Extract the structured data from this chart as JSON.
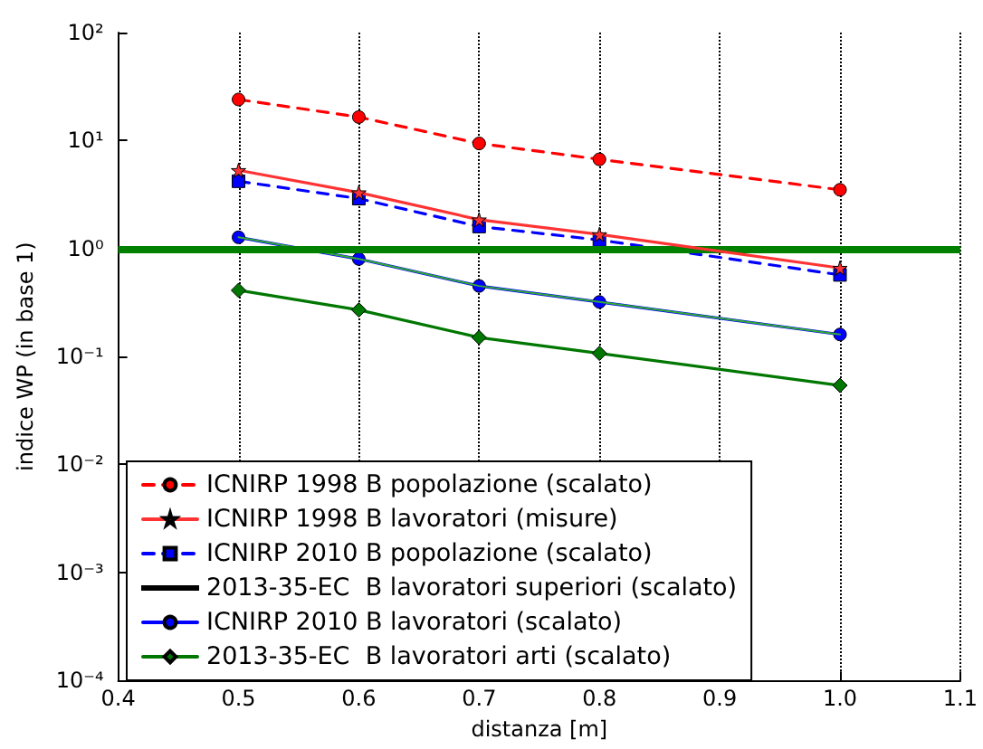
{
  "chart_data": {
    "type": "line",
    "xlabel": "distanza [m]",
    "ylabel": "indice WP (in base 1)",
    "x": [
      0.5,
      0.6,
      0.7,
      0.8,
      1.0
    ],
    "series": [
      {
        "name": "ICNIRP 1998 B popolazione (scalato)",
        "color": "#ff0000",
        "marker": "circle",
        "line_style": "dashed",
        "values": [
          24,
          16.5,
          9.4,
          6.7,
          3.5
        ]
      },
      {
        "name": "ICNIRP 1998 B lavoratori (misure)",
        "color": "#ff3333",
        "marker": "star",
        "line_style": "solid",
        "values": [
          5.3,
          3.3,
          1.85,
          1.35,
          0.66
        ]
      },
      {
        "name": "ICNIRP 2010 B popolazione (scalato)",
        "color": "#0000ff",
        "marker": "square",
        "line_style": "dashed",
        "values": [
          4.2,
          2.9,
          1.6,
          1.2,
          0.57
        ]
      },
      {
        "name": "2013-35-EC  B lavoratori superiori (scalato)",
        "color": "#33aa33",
        "marker": "none",
        "line_style": "solid",
        "values": [
          1.27,
          0.8,
          0.45,
          0.32,
          0.16
        ]
      },
      {
        "name": "ICNIRP 2010 B lavoratori (scalato)",
        "color": "#0000ff",
        "marker": "circle",
        "line_style": "solid",
        "values": [
          1.27,
          0.8,
          0.45,
          0.32,
          0.16
        ]
      },
      {
        "name": "2013-35-EC  B lavoratori arti (scalato)",
        "color": "#007700",
        "marker": "diamond",
        "line_style": "solid",
        "values": [
          0.41,
          0.27,
          0.15,
          0.107,
          0.054
        ]
      }
    ],
    "log": "y",
    "xlim": [
      0.4,
      1.1
    ],
    "xticks": [
      0.4,
      0.5,
      0.6,
      0.7,
      0.8,
      0.9,
      {
        "value": 1,
        "label": "1.0"
      },
      1.1
    ],
    "ylim": [
      0.0001,
      100
    ],
    "yticks": [
      {
        "value": 0.0001,
        "label": "10⁻⁴"
      },
      {
        "value": 0.001,
        "label": "10⁻³"
      },
      {
        "value": 0.01,
        "label": "10⁻²"
      },
      {
        "value": 0.1,
        "label": "10⁻¹"
      },
      {
        "value": 1,
        "label": "10⁰"
      },
      {
        "value": 10,
        "label": "10¹"
      },
      {
        "value": 100,
        "label": "10²"
      }
    ],
    "ref_lines": [
      {
        "axis": "y",
        "value": 1,
        "color": "#008000",
        "line_style": "solid"
      }
    ],
    "grid": "x",
    "legend": "bottom left"
  }
}
